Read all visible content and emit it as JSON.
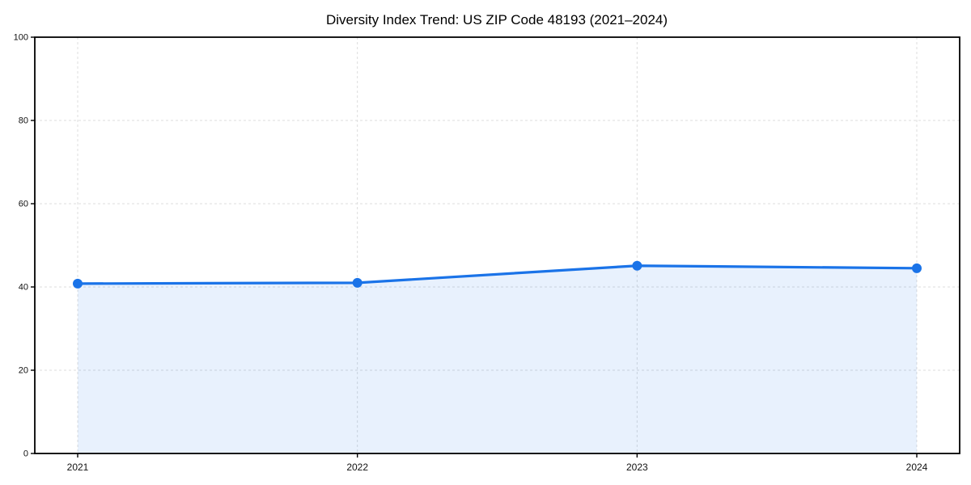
{
  "chart_data": {
    "type": "area",
    "title": "Diversity Index Trend: US ZIP Code 48193 (2021–2024)",
    "series_name": "Diversity Index",
    "x": [
      2021,
      2022,
      2023,
      2024
    ],
    "xtick_labels": [
      "2021",
      "2022",
      "2023",
      "2024"
    ],
    "values": [
      40.8,
      41.0,
      45.1,
      44.5
    ],
    "xlabel": "",
    "ylabel": "",
    "ylim": [
      0,
      100
    ],
    "yticks": [
      0,
      20,
      40,
      60,
      80,
      100
    ],
    "ytick_labels": [
      "0",
      "20",
      "40",
      "60",
      "80",
      "100"
    ],
    "grid": true,
    "grid_style": "dashed",
    "legend": "none",
    "colors": {
      "line": "#1a73e8",
      "marker": "#1a73e8",
      "fill": "#1a73e8",
      "fill_opacity": 0.1,
      "grid": "#dcdcdc",
      "spine": "#000000",
      "tick_label": "#111111",
      "title": "#000000",
      "background": "#ffffff"
    }
  }
}
